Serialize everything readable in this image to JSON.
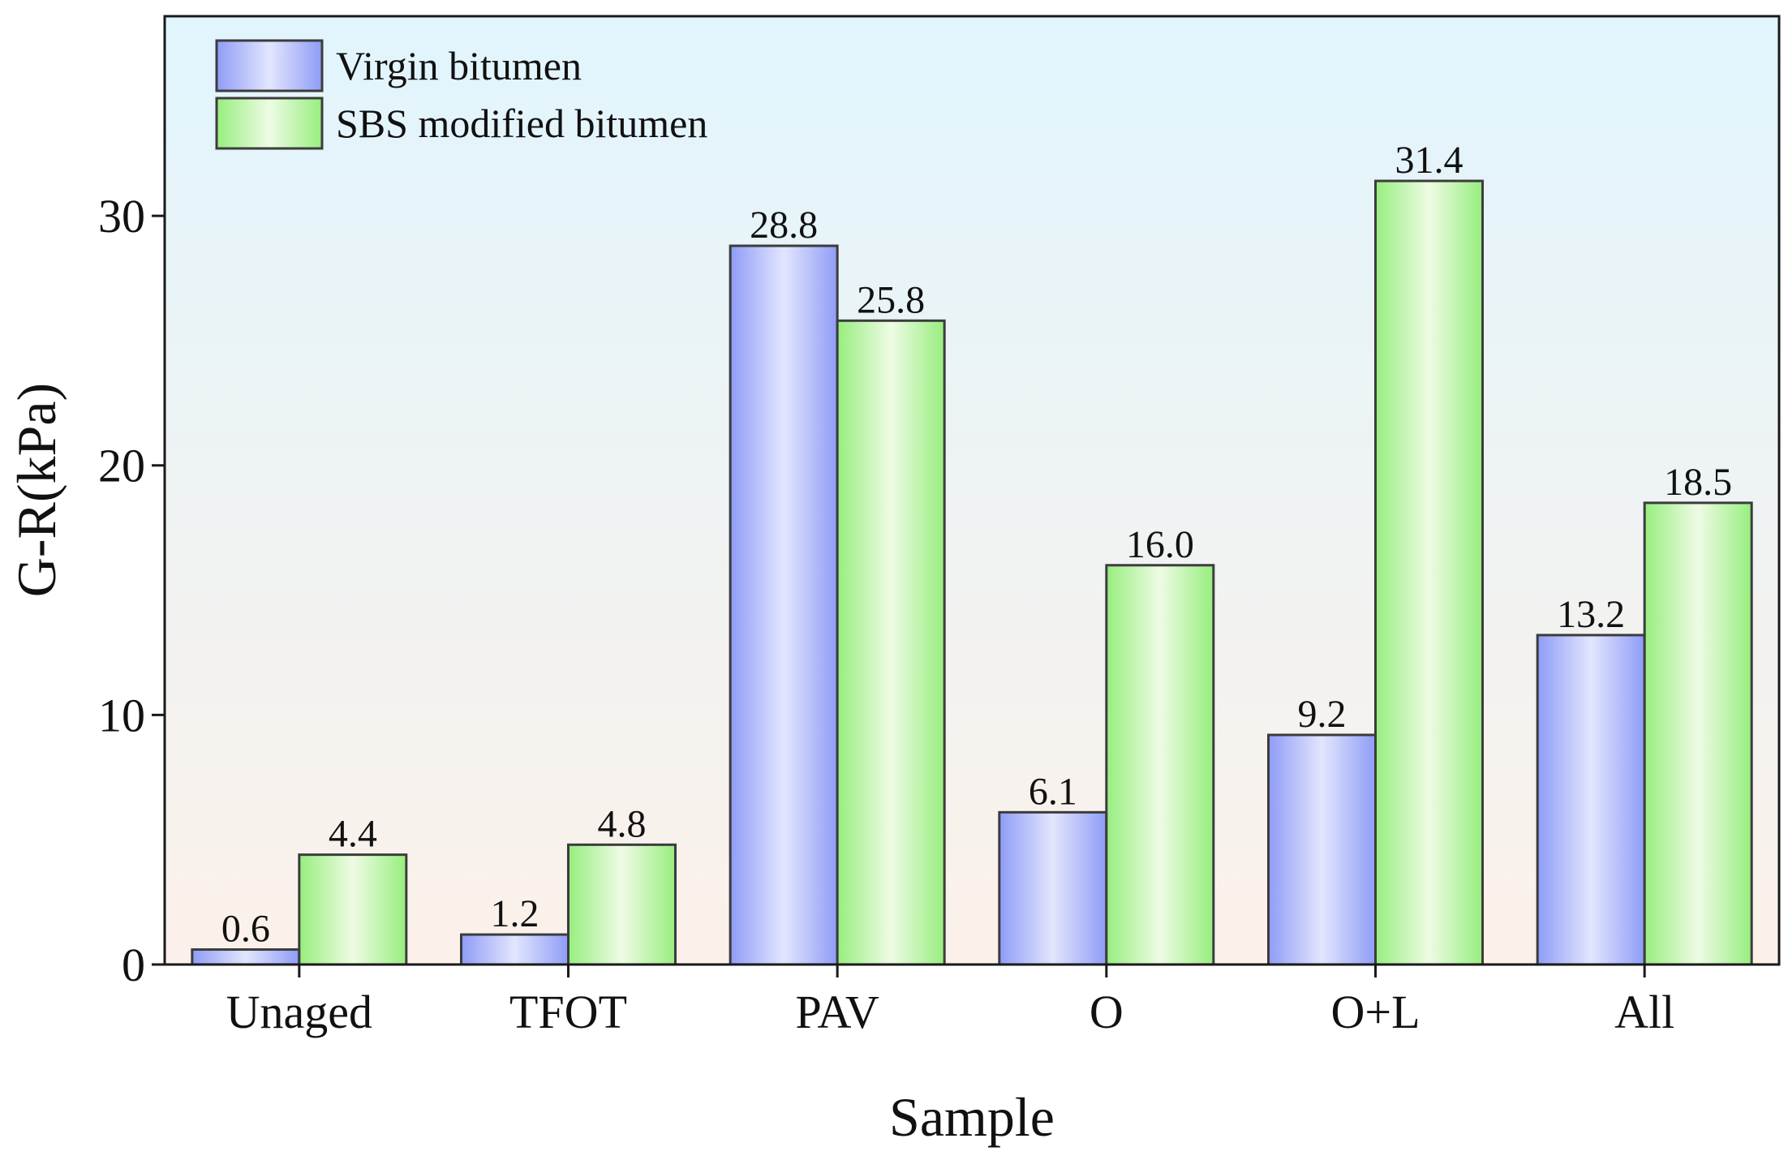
{
  "chart_data": {
    "type": "bar",
    "title": "",
    "xlabel": "Sample",
    "ylabel": "G-R(kPa)",
    "ylim": [
      0,
      38
    ],
    "yticks": [
      0,
      10,
      20,
      30
    ],
    "grid": false,
    "legend_position": "top-left",
    "categories": [
      "Unaged",
      "TFOT",
      "PAV",
      "O",
      "O+L",
      "All"
    ],
    "series": [
      {
        "name": "Virgin bitumen",
        "values": [
          0.6,
          1.2,
          28.8,
          6.1,
          9.2,
          13.2
        ],
        "labels": [
          "0.6",
          "1.2",
          "28.8",
          "6.1",
          "9.2",
          "13.2"
        ],
        "color": "#8f9cf7",
        "highlight": "#e2e6fd"
      },
      {
        "name": "SBS modified bitumen",
        "values": [
          4.4,
          4.8,
          25.8,
          16.0,
          31.4,
          18.5
        ],
        "labels": [
          "4.4",
          "4.8",
          "25.8",
          "16.0",
          "31.4",
          "18.5"
        ],
        "color": "#97ee7e",
        "highlight": "#eefbe4"
      }
    ],
    "background_top": "#e1f5fd",
    "background_bottom": "#fcf1ea",
    "bar_stroke": "#3c3c3c"
  }
}
